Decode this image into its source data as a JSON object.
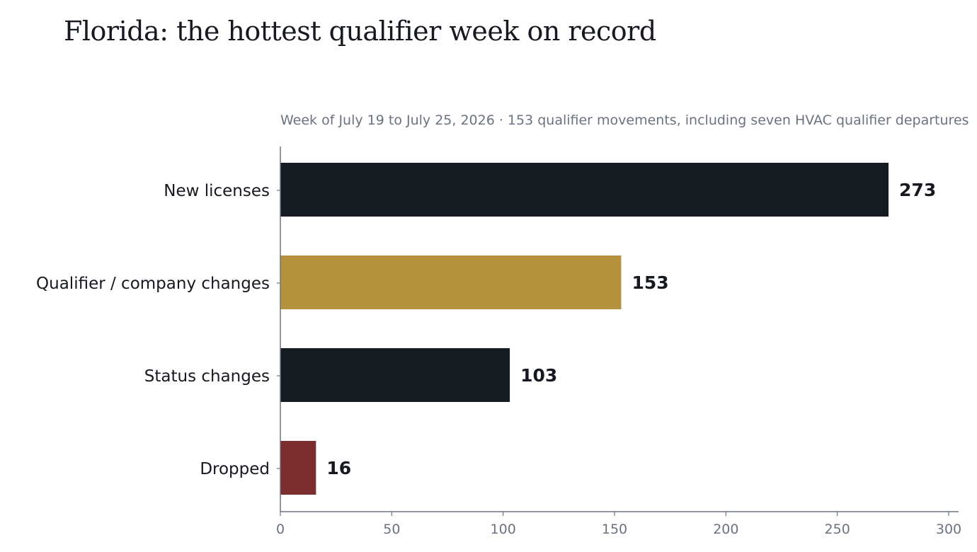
{
  "chart_data": {
    "type": "bar",
    "orientation": "horizontal",
    "title": "Florida: the hottest qualifier week on record",
    "subtitle": "Week of July 19 to July 25, 2026 · 153 qualifier movements, including seven HVAC qualifier departures",
    "categories": [
      "New licenses",
      "Qualifier / company changes",
      "Status changes",
      "Dropped"
    ],
    "values": [
      273,
      153,
      103,
      16
    ],
    "colors": [
      "#161a21",
      "#b5913e",
      "#161a21",
      "#7c2e2e"
    ],
    "xlim": [
      0,
      305
    ],
    "xticks": [
      0,
      50,
      100,
      150,
      200,
      250,
      300
    ],
    "xlabel": "",
    "ylabel": "",
    "grid": false,
    "legend": "none"
  }
}
